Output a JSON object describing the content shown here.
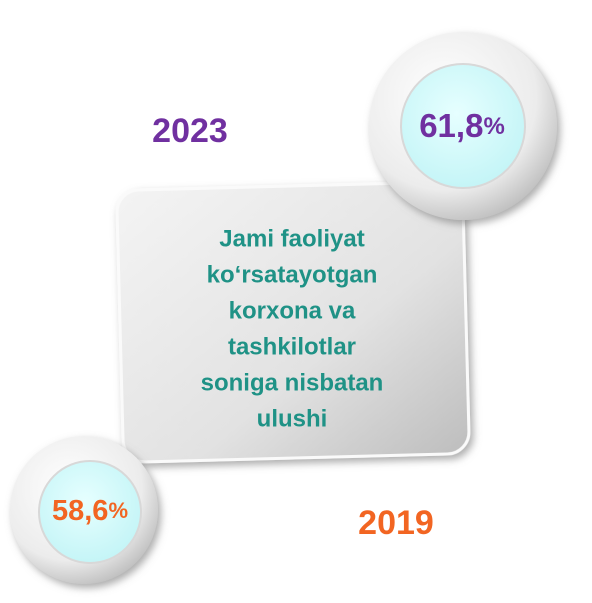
{
  "center_box": {
    "lines": [
      "Jami faoliyat",
      "ko‘rsatayotgan",
      "korxona va",
      "tashkilotlar",
      "soniga nisbatan",
      "ulushi"
    ]
  },
  "items": [
    {
      "year": "2023",
      "value": "61,8",
      "unit": "%"
    },
    {
      "year": "2019",
      "value": "58,6",
      "unit": "%"
    }
  ]
}
